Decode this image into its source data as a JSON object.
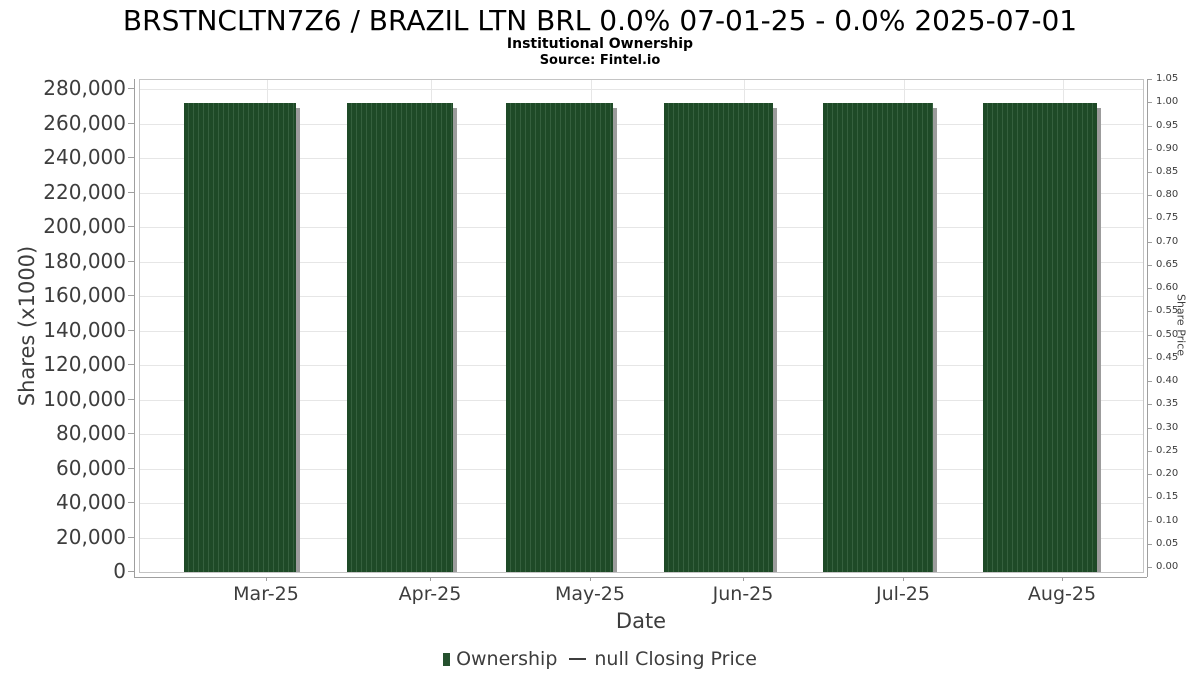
{
  "header": {
    "title": "BRSTNCLTN7Z6 / BRAZIL LTN BRL 0.0% 07-01-25 - 0.0% 2025-07-01",
    "subtitle": "Institutional Ownership",
    "source": "Source: Fintel.io"
  },
  "legend": {
    "ownership_label": "Ownership",
    "price_label": "null Closing Price"
  },
  "colors": {
    "bar": "#1e4a27",
    "bar_stripe": "#35603e",
    "bar_shadow": "#9c9c9c",
    "grid": "#e6e6e6",
    "axis": "#9f9f9f",
    "plot_border": "#c4c4c4",
    "tick_text": "#3d3d3d",
    "title_text": "#000000"
  },
  "chart_data": {
    "type": "bar",
    "categories": [
      "Mar-25",
      "Apr-25",
      "May-25",
      "Jun-25",
      "Jul-25",
      "Aug-25"
    ],
    "series": [
      {
        "name": "Ownership",
        "axis": "left",
        "values": [
          272000,
          272000,
          272000,
          272000,
          272000,
          272000
        ]
      },
      {
        "name": "null Closing Price",
        "axis": "right",
        "values": [
          null,
          null,
          null,
          null,
          null,
          null
        ]
      }
    ],
    "title": "BRSTNCLTN7Z6 / BRAZIL LTN BRL 0.0% 07-01-25 - 0.0% 2025-07-01",
    "subtitle": "Institutional Ownership",
    "source": "Source: Fintel.io",
    "xlabel": "Date",
    "ylabel_left": "Shares (x1000)",
    "ylabel_right": "Share Price",
    "y_left_ticks": [
      0,
      20000,
      40000,
      60000,
      80000,
      100000,
      120000,
      140000,
      160000,
      180000,
      200000,
      220000,
      240000,
      260000,
      280000
    ],
    "y_left_range": [
      0,
      285200
    ],
    "y_right_ticks": [
      0.0,
      0.05,
      0.1,
      0.15,
      0.2,
      0.25,
      0.3,
      0.35,
      0.4,
      0.45,
      0.5,
      0.55,
      0.6,
      0.65,
      0.7,
      0.75,
      0.8,
      0.85,
      0.9,
      0.95,
      1.0,
      1.05
    ],
    "y_right_range": [
      0,
      1.05
    ],
    "grid": true,
    "legend_position": "bottom"
  }
}
